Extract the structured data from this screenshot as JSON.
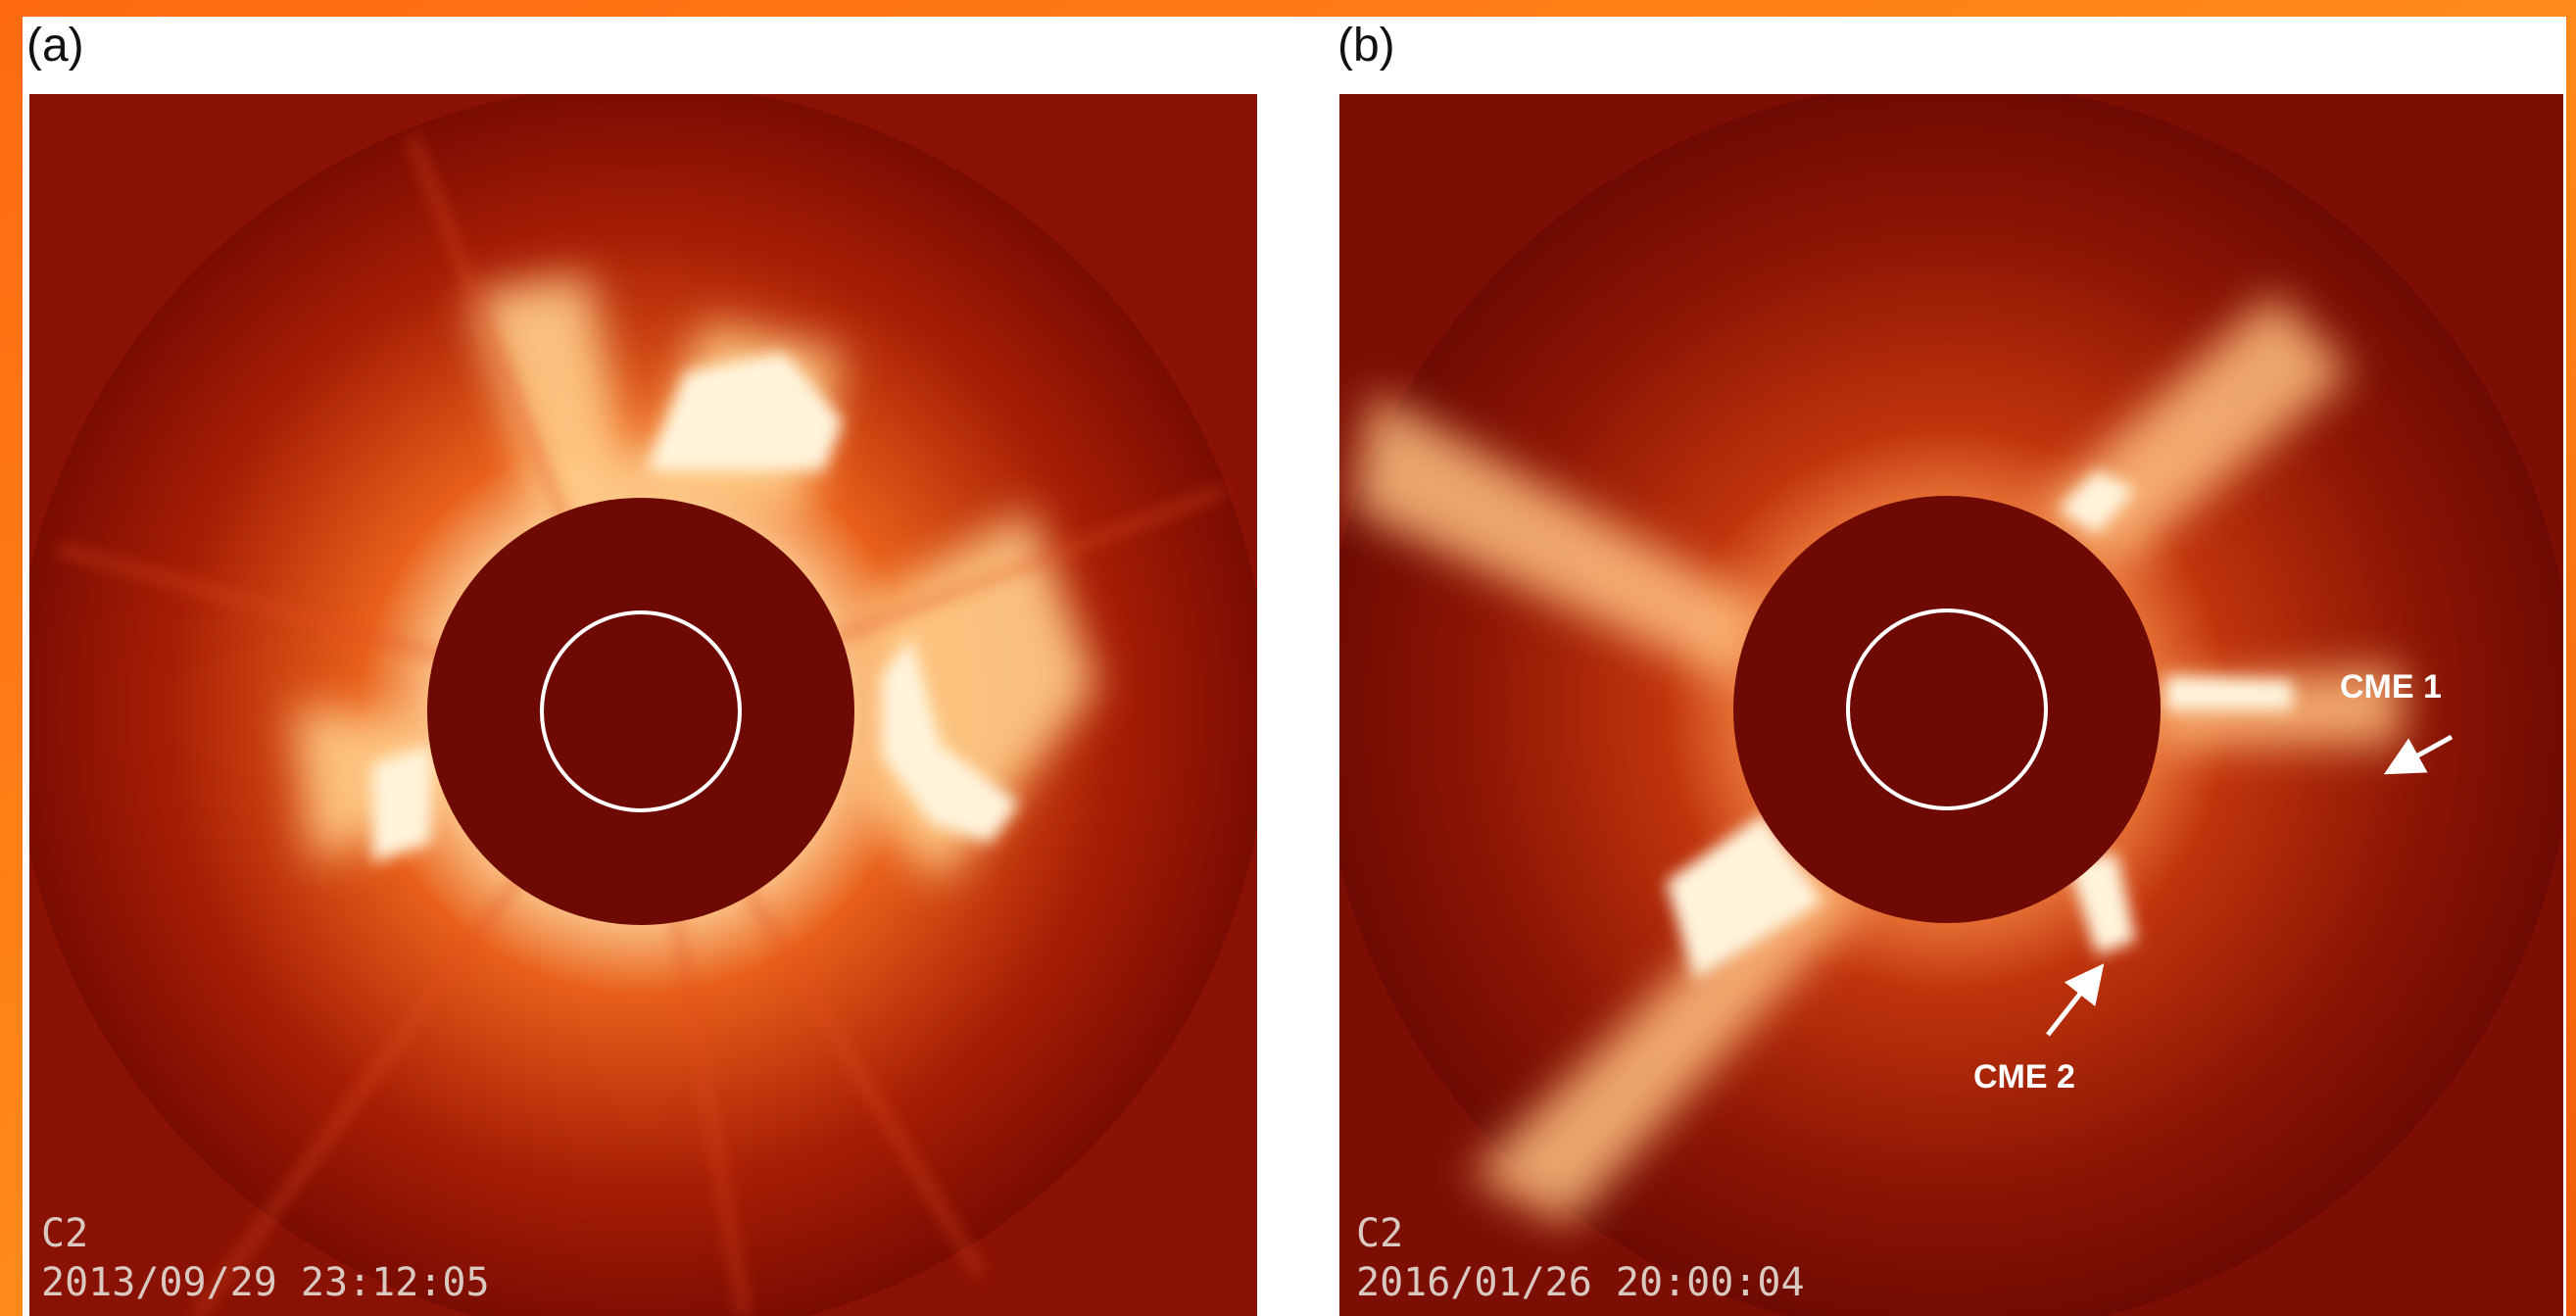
{
  "panels": [
    {
      "label": "(a)",
      "instrument": "C2",
      "timestamp": "2013/09/29 23:12:05"
    },
    {
      "label": "(b)",
      "instrument": "C2",
      "timestamp": "2016/01/26 20:00:04",
      "annotations": [
        "CME 1",
        "CME 2"
      ]
    }
  ]
}
